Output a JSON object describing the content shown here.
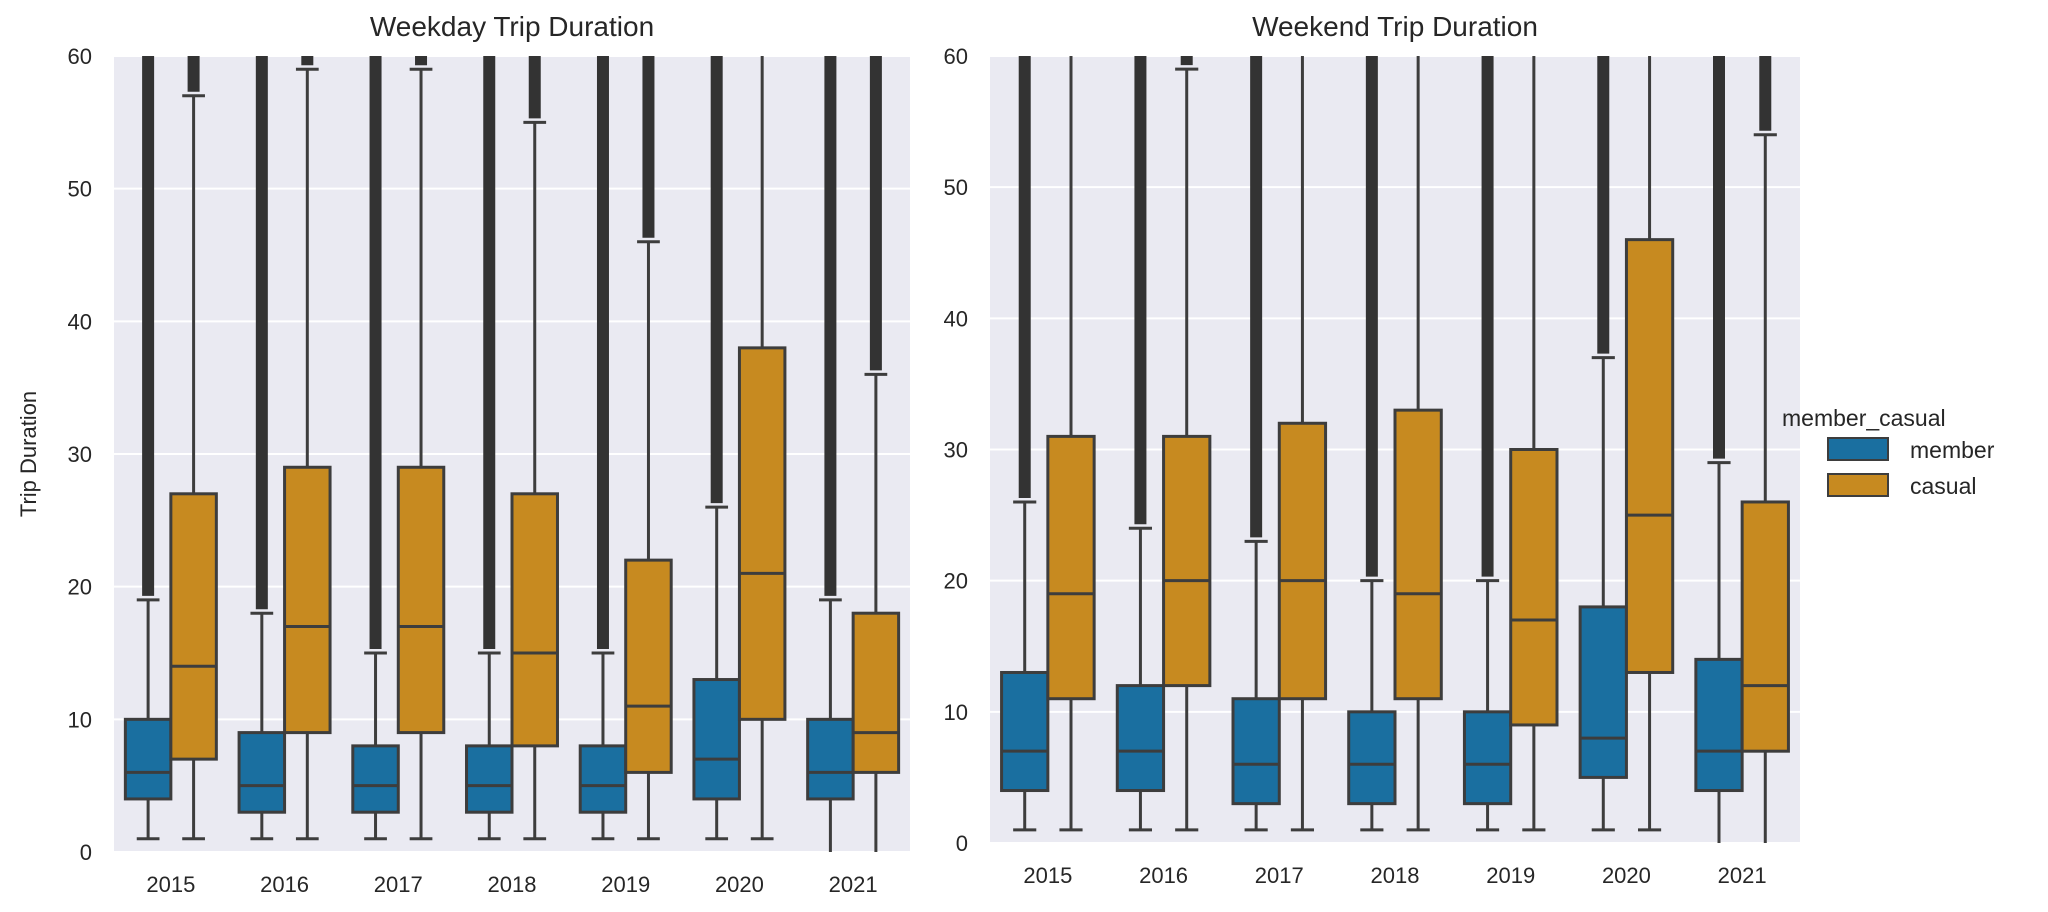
{
  "chart_data": [
    {
      "type": "box",
      "title": "Weekday Trip Duration",
      "xlabel": "",
      "ylabel": "Trip Duration",
      "ylim": [
        0,
        60
      ],
      "yticks": [
        0,
        10,
        20,
        30,
        40,
        50,
        60
      ],
      "categories": [
        "2015",
        "2016",
        "2017",
        "2018",
        "2019",
        "2020",
        "2021"
      ],
      "grid": true,
      "series": [
        {
          "name": "member",
          "boxes": [
            {
              "whislo": 1,
              "q1": 4,
              "med": 6,
              "q3": 10,
              "whishi": 19,
              "outliers_above": true
            },
            {
              "whislo": 1,
              "q1": 3,
              "med": 5,
              "q3": 9,
              "whishi": 18,
              "outliers_above": true
            },
            {
              "whislo": 1,
              "q1": 3,
              "med": 5,
              "q3": 8,
              "whishi": 15,
              "outliers_above": true
            },
            {
              "whislo": 1,
              "q1": 3,
              "med": 5,
              "q3": 8,
              "whishi": 15,
              "outliers_above": true
            },
            {
              "whislo": 1,
              "q1": 3,
              "med": 5,
              "q3": 8,
              "whishi": 15,
              "outliers_above": true
            },
            {
              "whislo": 1,
              "q1": 4,
              "med": 7,
              "q3": 13,
              "whishi": 26,
              "outliers_above": true
            },
            {
              "whislo": 0,
              "q1": 4,
              "med": 6,
              "q3": 10,
              "whishi": 19,
              "outliers_above": true
            }
          ]
        },
        {
          "name": "casual",
          "boxes": [
            {
              "whislo": 1,
              "q1": 7,
              "med": 14,
              "q3": 27,
              "whishi": 57,
              "outliers_above": true
            },
            {
              "whislo": 1,
              "q1": 9,
              "med": 17,
              "q3": 29,
              "whishi": 59,
              "outliers_above": true
            },
            {
              "whislo": 1,
              "q1": 9,
              "med": 17,
              "q3": 29,
              "whishi": 59,
              "outliers_above": true
            },
            {
              "whislo": 1,
              "q1": 8,
              "med": 15,
              "q3": 27,
              "whishi": 55,
              "outliers_above": true
            },
            {
              "whislo": 1,
              "q1": 6,
              "med": 11,
              "q3": 22,
              "whishi": 46,
              "outliers_above": true
            },
            {
              "whislo": 1,
              "q1": 10,
              "med": 21,
              "q3": 38,
              "whishi": 60,
              "outliers_above": false
            },
            {
              "whislo": 0,
              "q1": 6,
              "med": 9,
              "q3": 18,
              "whishi": 36,
              "outliers_above": true
            }
          ]
        }
      ]
    },
    {
      "type": "box",
      "title": "Weekend Trip Duration",
      "xlabel": "",
      "ylabel": "",
      "ylim": [
        0,
        60
      ],
      "yticks": [
        0,
        10,
        20,
        30,
        40,
        50,
        60
      ],
      "categories": [
        "2015",
        "2016",
        "2017",
        "2018",
        "2019",
        "2020",
        "2021"
      ],
      "grid": true,
      "series": [
        {
          "name": "member",
          "boxes": [
            {
              "whislo": 1,
              "q1": 4,
              "med": 7,
              "q3": 13,
              "whishi": 26,
              "outliers_above": true
            },
            {
              "whislo": 1,
              "q1": 4,
              "med": 7,
              "q3": 12,
              "whishi": 24,
              "outliers_above": true
            },
            {
              "whislo": 1,
              "q1": 3,
              "med": 6,
              "q3": 11,
              "whishi": 23,
              "outliers_above": true
            },
            {
              "whislo": 1,
              "q1": 3,
              "med": 6,
              "q3": 10,
              "whishi": 20,
              "outliers_above": true
            },
            {
              "whislo": 1,
              "q1": 3,
              "med": 6,
              "q3": 10,
              "whishi": 20,
              "outliers_above": true
            },
            {
              "whislo": 1,
              "q1": 5,
              "med": 8,
              "q3": 18,
              "whishi": 37,
              "outliers_above": true
            },
            {
              "whislo": 0,
              "q1": 4,
              "med": 7,
              "q3": 14,
              "whishi": 29,
              "outliers_above": true
            }
          ]
        },
        {
          "name": "casual",
          "boxes": [
            {
              "whislo": 1,
              "q1": 11,
              "med": 19,
              "q3": 31,
              "whishi": 60,
              "outliers_above": false
            },
            {
              "whislo": 1,
              "q1": 12,
              "med": 20,
              "q3": 31,
              "whishi": 59,
              "outliers_above": true
            },
            {
              "whislo": 1,
              "q1": 11,
              "med": 20,
              "q3": 32,
              "whishi": 60,
              "outliers_above": false
            },
            {
              "whislo": 1,
              "q1": 11,
              "med": 19,
              "q3": 33,
              "whishi": 60,
              "outliers_above": false
            },
            {
              "whislo": 1,
              "q1": 9,
              "med": 17,
              "q3": 30,
              "whishi": 60,
              "outliers_above": false
            },
            {
              "whislo": 1,
              "q1": 13,
              "med": 25,
              "q3": 46,
              "whishi": 60,
              "outliers_above": false
            },
            {
              "whislo": 0,
              "q1": 7,
              "med": 12,
              "q3": 26,
              "whishi": 54,
              "outliers_above": true
            }
          ]
        }
      ]
    }
  ],
  "legend": {
    "title": "member_casual",
    "placement": "center-right",
    "items": [
      {
        "label": "member",
        "color": "#1f6f9f"
      },
      {
        "label": "casual",
        "color": "#c68a20"
      }
    ]
  },
  "colors": {
    "member": "#1a6fa0",
    "casual": "#c78a20",
    "outline": "#3d3d3d",
    "outlier": "#333333",
    "plot_bg": "#eaeaf2",
    "grid": "#ffffff"
  }
}
